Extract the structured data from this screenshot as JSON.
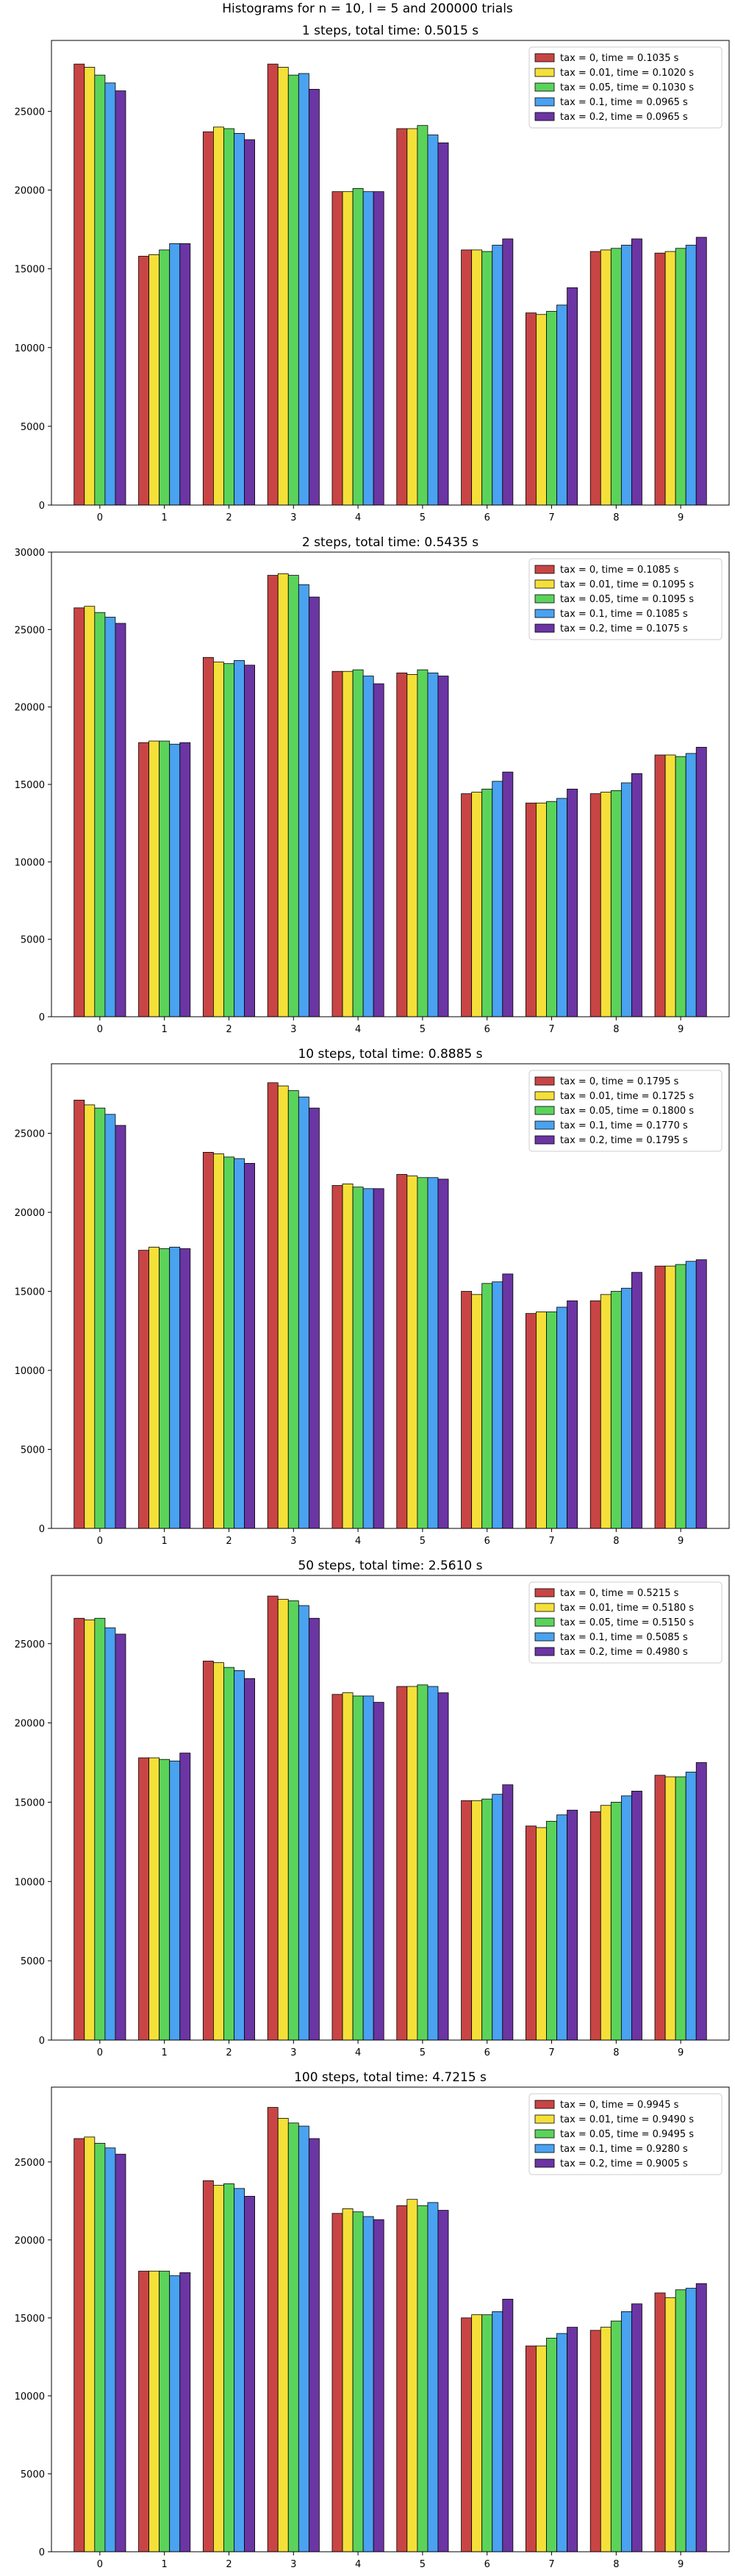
{
  "figure": {
    "suptitle": "Histograms for n = 10, l = 5 and 200000 trials"
  },
  "chart_data": [
    {
      "type": "bar",
      "title": "1 steps, total time: 0.5015 s",
      "categories": [
        "0",
        "1",
        "2",
        "3",
        "4",
        "5",
        "6",
        "7",
        "8",
        "9"
      ],
      "ylim": [
        0,
        29500
      ],
      "yticks": [
        0,
        5000,
        10000,
        15000,
        20000,
        25000
      ],
      "legend_position": "top-right",
      "series": [
        {
          "name": "tax = 0, time = 0.1035 s",
          "color": "#c94545",
          "values": [
            28000,
            15800,
            23700,
            28000,
            19900,
            23900,
            16200,
            12200,
            16100,
            16000
          ]
        },
        {
          "name": "tax = 0.01, time = 0.1020 s",
          "color": "#f5e03a",
          "values": [
            27800,
            15900,
            24000,
            27800,
            19900,
            23900,
            16200,
            12100,
            16200,
            16100
          ]
        },
        {
          "name": "tax = 0.05, time = 0.1030 s",
          "color": "#5bd35b",
          "values": [
            27300,
            16200,
            23900,
            27300,
            20100,
            24100,
            16100,
            12300,
            16300,
            16300
          ]
        },
        {
          "name": "tax = 0.1, time = 0.0965 s",
          "color": "#4aa2f0",
          "values": [
            26800,
            16600,
            23600,
            27400,
            19900,
            23500,
            16500,
            12700,
            16500,
            16500
          ]
        },
        {
          "name": "tax = 0.2, time = 0.0965 s",
          "color": "#6b35a3",
          "values": [
            26300,
            16600,
            23200,
            26400,
            19900,
            23000,
            16900,
            13800,
            16900,
            17000
          ]
        }
      ]
    },
    {
      "type": "bar",
      "title": "2 steps, total time: 0.5435 s",
      "categories": [
        "0",
        "1",
        "2",
        "3",
        "4",
        "5",
        "6",
        "7",
        "8",
        "9"
      ],
      "ylim": [
        0,
        30000
      ],
      "yticks": [
        0,
        5000,
        10000,
        15000,
        20000,
        25000,
        30000
      ],
      "legend_position": "top-right",
      "series": [
        {
          "name": "tax = 0, time = 0.1085 s",
          "color": "#c94545",
          "values": [
            26400,
            17700,
            23200,
            28500,
            22300,
            22200,
            14400,
            13800,
            14400,
            16900
          ]
        },
        {
          "name": "tax = 0.01, time = 0.1095 s",
          "color": "#f5e03a",
          "values": [
            26500,
            17800,
            22900,
            28600,
            22300,
            22100,
            14500,
            13800,
            14500,
            16900
          ]
        },
        {
          "name": "tax = 0.05, time = 0.1095 s",
          "color": "#5bd35b",
          "values": [
            26100,
            17800,
            22800,
            28500,
            22400,
            22400,
            14700,
            13900,
            14600,
            16800
          ]
        },
        {
          "name": "tax = 0.1, time = 0.1085 s",
          "color": "#4aa2f0",
          "values": [
            25800,
            17600,
            23000,
            27900,
            22000,
            22200,
            15200,
            14100,
            15100,
            17000
          ]
        },
        {
          "name": "tax = 0.2, time = 0.1075 s",
          "color": "#6b35a3",
          "values": [
            25400,
            17700,
            22700,
            27100,
            21500,
            22000,
            15800,
            14700,
            15700,
            17400
          ]
        }
      ]
    },
    {
      "type": "bar",
      "title": "10 steps, total time: 0.8885 s",
      "categories": [
        "0",
        "1",
        "2",
        "3",
        "4",
        "5",
        "6",
        "7",
        "8",
        "9"
      ],
      "ylim": [
        0,
        29400
      ],
      "yticks": [
        0,
        5000,
        10000,
        15000,
        20000,
        25000
      ],
      "legend_position": "top-right",
      "series": [
        {
          "name": "tax = 0, time = 0.1795 s",
          "color": "#c94545",
          "values": [
            27100,
            17600,
            23800,
            28200,
            21700,
            22400,
            15000,
            13600,
            14400,
            16600
          ]
        },
        {
          "name": "tax = 0.01, time = 0.1725 s",
          "color": "#f5e03a",
          "values": [
            26800,
            17800,
            23700,
            28000,
            21800,
            22300,
            14800,
            13700,
            14800,
            16600
          ]
        },
        {
          "name": "tax = 0.05, time = 0.1800 s",
          "color": "#5bd35b",
          "values": [
            26600,
            17700,
            23500,
            27700,
            21600,
            22200,
            15500,
            13700,
            15000,
            16700
          ]
        },
        {
          "name": "tax = 0.1, time = 0.1770 s",
          "color": "#4aa2f0",
          "values": [
            26200,
            17800,
            23400,
            27300,
            21500,
            22200,
            15600,
            14000,
            15200,
            16900
          ]
        },
        {
          "name": "tax = 0.2, time = 0.1795 s",
          "color": "#6b35a3",
          "values": [
            25500,
            17700,
            23100,
            26600,
            21500,
            22100,
            16100,
            14400,
            16200,
            17000
          ]
        }
      ]
    },
    {
      "type": "bar",
      "title": "50 steps, total time: 2.5610 s",
      "categories": [
        "0",
        "1",
        "2",
        "3",
        "4",
        "5",
        "6",
        "7",
        "8",
        "9"
      ],
      "ylim": [
        0,
        29300
      ],
      "yticks": [
        0,
        5000,
        10000,
        15000,
        20000,
        25000
      ],
      "legend_position": "top-right",
      "series": [
        {
          "name": "tax = 0, time = 0.5215 s",
          "color": "#c94545",
          "values": [
            26600,
            17800,
            23900,
            28000,
            21800,
            22300,
            15100,
            13500,
            14400,
            16700
          ]
        },
        {
          "name": "tax = 0.01, time = 0.5180 s",
          "color": "#f5e03a",
          "values": [
            26500,
            17800,
            23800,
            27800,
            21900,
            22300,
            15100,
            13400,
            14800,
            16600
          ]
        },
        {
          "name": "tax = 0.05, time = 0.5150 s",
          "color": "#5bd35b",
          "values": [
            26600,
            17700,
            23500,
            27700,
            21700,
            22400,
            15200,
            13800,
            15000,
            16600
          ]
        },
        {
          "name": "tax = 0.1, time = 0.5085 s",
          "color": "#4aa2f0",
          "values": [
            26000,
            17600,
            23300,
            27400,
            21700,
            22300,
            15500,
            14200,
            15400,
            16900
          ]
        },
        {
          "name": "tax = 0.2, time = 0.4980 s",
          "color": "#6b35a3",
          "values": [
            25600,
            18100,
            22800,
            26600,
            21300,
            21900,
            16100,
            14500,
            15700,
            17500
          ]
        }
      ]
    },
    {
      "type": "bar",
      "title": "100 steps, total time: 4.7215 s",
      "categories": [
        "0",
        "1",
        "2",
        "3",
        "4",
        "5",
        "6",
        "7",
        "8",
        "9"
      ],
      "ylim": [
        0,
        29800
      ],
      "yticks": [
        0,
        5000,
        10000,
        15000,
        20000,
        25000
      ],
      "legend_position": "top-right",
      "series": [
        {
          "name": "tax = 0, time = 0.9945 s",
          "color": "#c94545",
          "values": [
            26500,
            18000,
            23800,
            28500,
            21700,
            22200,
            15000,
            13200,
            14200,
            16600
          ]
        },
        {
          "name": "tax = 0.01, time = 0.9490 s",
          "color": "#f5e03a",
          "values": [
            26600,
            18000,
            23500,
            27800,
            22000,
            22600,
            15200,
            13200,
            14400,
            16300
          ]
        },
        {
          "name": "tax = 0.05, time = 0.9495 s",
          "color": "#5bd35b",
          "values": [
            26200,
            18000,
            23600,
            27500,
            21800,
            22200,
            15200,
            13700,
            14800,
            16800
          ]
        },
        {
          "name": "tax = 0.1, time = 0.9280 s",
          "color": "#4aa2f0",
          "values": [
            25900,
            17700,
            23300,
            27300,
            21500,
            22400,
            15400,
            14000,
            15400,
            16900
          ]
        },
        {
          "name": "tax = 0.2, time = 0.9005 s",
          "color": "#6b35a3",
          "values": [
            25500,
            17900,
            22800,
            26500,
            21300,
            21900,
            16200,
            14400,
            15900,
            17200
          ]
        }
      ]
    }
  ]
}
